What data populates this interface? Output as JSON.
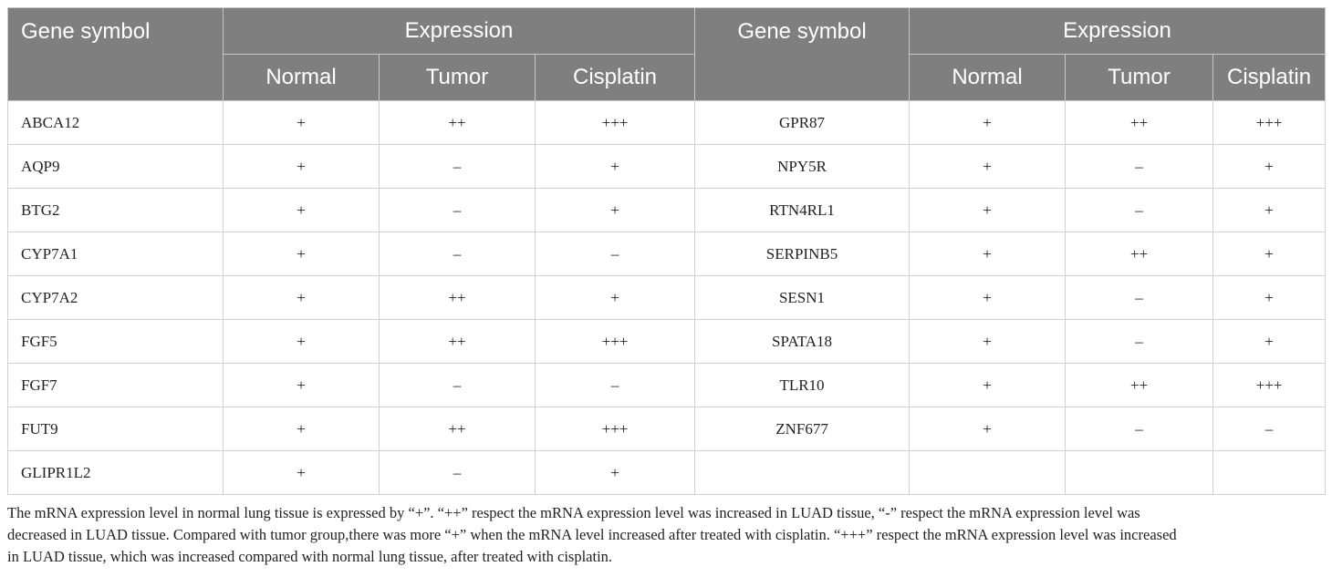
{
  "table": {
    "header": {
      "gene_symbol": "Gene symbol",
      "expression": "Expression",
      "normal": "Normal",
      "tumor": "Tumor",
      "cisplatin": "Cisplatin"
    },
    "rows": [
      {
        "gene_a": "ABCA12",
        "normal_a": "+",
        "tumor_a": "++",
        "cis_a": "+++",
        "gene_b": "GPR87",
        "normal_b": "+",
        "tumor_b": "++",
        "cis_b": "+++"
      },
      {
        "gene_a": "AQP9",
        "normal_a": "+",
        "tumor_a": "–",
        "cis_a": "+",
        "gene_b": "NPY5R",
        "normal_b": "+",
        "tumor_b": "–",
        "cis_b": "+"
      },
      {
        "gene_a": "BTG2",
        "normal_a": "+",
        "tumor_a": "–",
        "cis_a": "+",
        "gene_b": "RTN4RL1",
        "normal_b": "+",
        "tumor_b": "–",
        "cis_b": "+"
      },
      {
        "gene_a": "CYP7A1",
        "normal_a": "+",
        "tumor_a": "–",
        "cis_a": "–",
        "gene_b": "SERPINB5",
        "normal_b": "+",
        "tumor_b": "++",
        "cis_b": "+"
      },
      {
        "gene_a": "CYP7A2",
        "normal_a": "+",
        "tumor_a": "++",
        "cis_a": "+",
        "gene_b": "SESN1",
        "normal_b": "+",
        "tumor_b": "–",
        "cis_b": "+"
      },
      {
        "gene_a": "FGF5",
        "normal_a": "+",
        "tumor_a": "++",
        "cis_a": "+++",
        "gene_b": "SPATA18",
        "normal_b": "+",
        "tumor_b": "–",
        "cis_b": "+"
      },
      {
        "gene_a": "FGF7",
        "normal_a": "+",
        "tumor_a": "–",
        "cis_a": "–",
        "gene_b": "TLR10",
        "normal_b": "+",
        "tumor_b": "++",
        "cis_b": "+++"
      },
      {
        "gene_a": "FUT9",
        "normal_a": "+",
        "tumor_a": "++",
        "cis_a": "+++",
        "gene_b": "ZNF677",
        "normal_b": "+",
        "tumor_b": "–",
        "cis_b": "–"
      },
      {
        "gene_a": "GLIPR1L2",
        "normal_a": "+",
        "tumor_a": "–",
        "cis_a": "+",
        "gene_b": "",
        "normal_b": "",
        "tumor_b": "",
        "cis_b": ""
      }
    ]
  },
  "footnote": {
    "line1": "The mRNA expression level in normal lung tissue is expressed by “+”. “++” respect the mRNA expression level was increased in LUAD tissue, “-” respect the mRNA expression level was",
    "line2": "decreased in LUAD tissue. Compared with tumor group,there was more “+” when the mRNA level increased after treated with cisplatin. “+++” respect the mRNA expression level was increased",
    "line3": "in LUAD tissue, which was increased compared with normal lung tissue,  after treated with cisplatin."
  }
}
